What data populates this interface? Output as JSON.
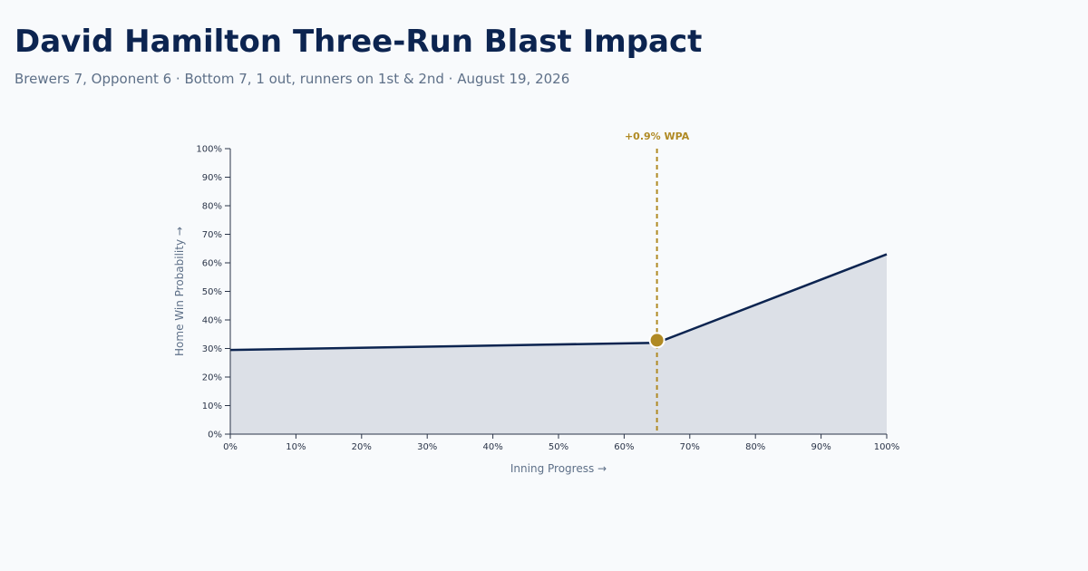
{
  "header": {
    "title": "David Hamilton Three-Run Blast Impact",
    "subtitle": "Brewers 7, Opponent 6 · Bottom 7, 1 out, runners on 1st & 2nd · August 19, 2026"
  },
  "colors": {
    "line": "#0c2450",
    "fill": "#dce0e7",
    "accent": "#b08a24",
    "axis": "#2a3448"
  },
  "chart_data": {
    "type": "area",
    "xlabel": "Inning Progress →",
    "ylabel": "Home Win Probability →",
    "xlim": [
      0,
      100
    ],
    "ylim": [
      0,
      100
    ],
    "x_ticks": [
      "0%",
      "10%",
      "20%",
      "30%",
      "40%",
      "50%",
      "60%",
      "70%",
      "80%",
      "90%",
      "100%"
    ],
    "y_ticks": [
      "0%",
      "10%",
      "20%",
      "30%",
      "40%",
      "50%",
      "60%",
      "70%",
      "80%",
      "90%",
      "100%"
    ],
    "grid": false,
    "series": [
      {
        "x": [
          0,
          65,
          100
        ],
        "y": [
          29.5,
          32,
          63
        ]
      }
    ],
    "annotation": {
      "x": 65,
      "y": 32.9,
      "label": "+0.9% WPA"
    }
  }
}
